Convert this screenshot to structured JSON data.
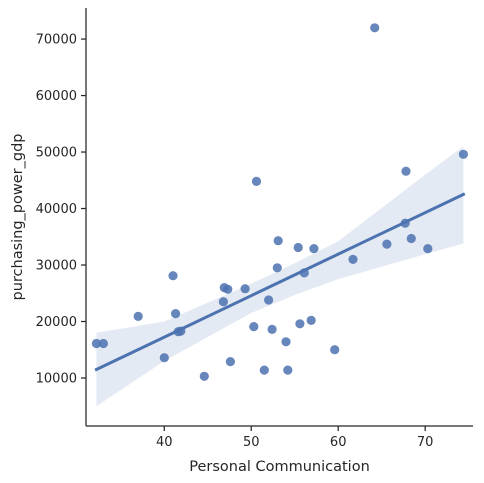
{
  "chart_data": {
    "type": "scatter",
    "xlabel": "Personal Communication",
    "ylabel": "purchasing_power_gdp",
    "xlim": [
      31,
      75.5
    ],
    "ylim": [
      1500,
      75500
    ],
    "x_ticks": [
      40,
      50,
      60,
      70
    ],
    "y_ticks": [
      10000,
      20000,
      30000,
      40000,
      50000,
      60000,
      70000
    ],
    "grid": false,
    "color": "#4c72b0",
    "points": [
      {
        "x": 32.2,
        "y": 16100
      },
      {
        "x": 33.0,
        "y": 16100
      },
      {
        "x": 37.0,
        "y": 20900
      },
      {
        "x": 40.0,
        "y": 13600
      },
      {
        "x": 41.0,
        "y": 28100
      },
      {
        "x": 41.3,
        "y": 21400
      },
      {
        "x": 41.6,
        "y": 18200
      },
      {
        "x": 41.9,
        "y": 18300
      },
      {
        "x": 44.6,
        "y": 10300
      },
      {
        "x": 46.8,
        "y": 23500
      },
      {
        "x": 46.9,
        "y": 26000
      },
      {
        "x": 47.3,
        "y": 25700
      },
      {
        "x": 47.6,
        "y": 12900
      },
      {
        "x": 49.3,
        "y": 25800
      },
      {
        "x": 50.3,
        "y": 19100
      },
      {
        "x": 50.6,
        "y": 44800
      },
      {
        "x": 51.5,
        "y": 11400
      },
      {
        "x": 52.0,
        "y": 23800
      },
      {
        "x": 52.4,
        "y": 18600
      },
      {
        "x": 53.0,
        "y": 29500
      },
      {
        "x": 53.1,
        "y": 34300
      },
      {
        "x": 54.0,
        "y": 16400
      },
      {
        "x": 54.2,
        "y": 11400
      },
      {
        "x": 55.4,
        "y": 33100
      },
      {
        "x": 55.6,
        "y": 19600
      },
      {
        "x": 56.1,
        "y": 28600
      },
      {
        "x": 56.9,
        "y": 20200
      },
      {
        "x": 57.2,
        "y": 32900
      },
      {
        "x": 59.6,
        "y": 15000
      },
      {
        "x": 61.7,
        "y": 31000
      },
      {
        "x": 64.2,
        "y": 72000
      },
      {
        "x": 65.6,
        "y": 33700
      },
      {
        "x": 67.7,
        "y": 37400
      },
      {
        "x": 67.8,
        "y": 46600
      },
      {
        "x": 68.4,
        "y": 34700
      },
      {
        "x": 70.3,
        "y": 32900
      },
      {
        "x": 74.4,
        "y": 49600
      }
    ],
    "regression": {
      "x": [
        32.2,
        74.4
      ],
      "y": [
        11500,
        42500
      ]
    },
    "confidence_band": {
      "x": [
        32.2,
        40,
        50,
        55,
        60,
        70,
        74.4
      ],
      "lower": [
        5000,
        13000,
        21500,
        24700,
        27500,
        31900,
        33800
      ],
      "upper": [
        18000,
        20000,
        26700,
        30300,
        34200,
        46000,
        51000
      ]
    }
  }
}
